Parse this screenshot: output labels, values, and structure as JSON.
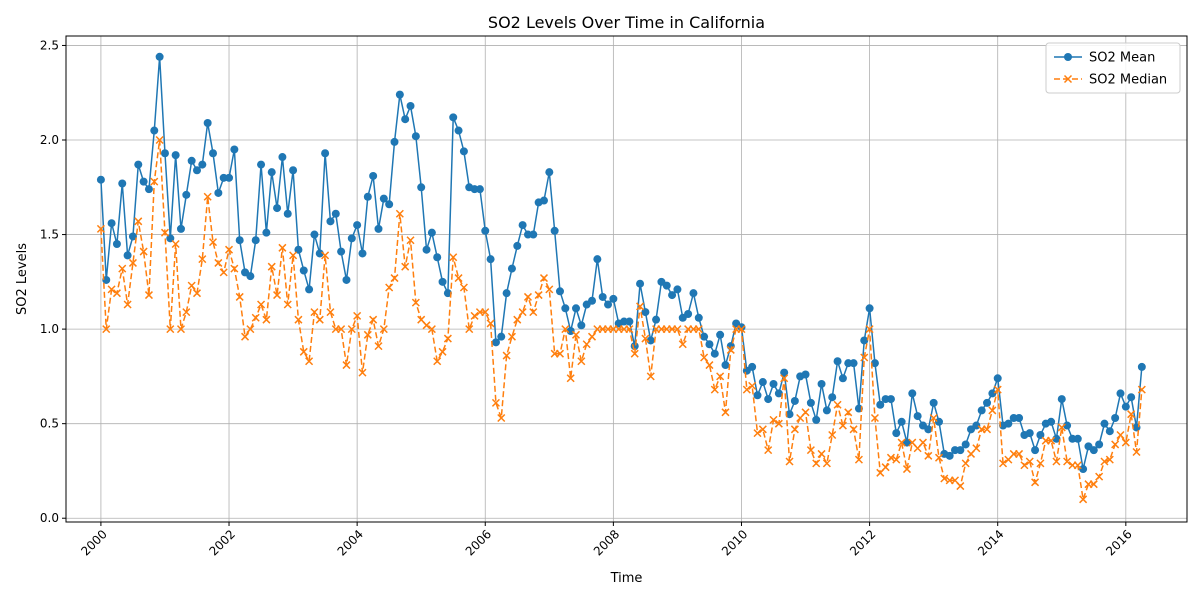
{
  "chart_data": {
    "type": "line",
    "title": "SO2 Levels Over Time in California",
    "xlabel": "Time",
    "ylabel": "SO2 Levels",
    "x_ticks": [
      "2000",
      "2002",
      "2004",
      "2006",
      "2008",
      "2010",
      "2012",
      "2014",
      "2016"
    ],
    "y_ticks": [
      "0.0",
      "0.5",
      "1.0",
      "1.5",
      "2.0",
      "2.5"
    ],
    "xlim": [
      "1999-06-15",
      "2016-12-15"
    ],
    "ylim": [
      -0.02,
      2.55
    ],
    "grid": true,
    "legend_position": "top-right",
    "start_month": "2000-01",
    "series": [
      {
        "name": "SO2 Mean",
        "color": "#1f77b4",
        "line_style": "solid",
        "marker": "circle",
        "values": [
          1.79,
          1.26,
          1.56,
          1.45,
          1.77,
          1.39,
          1.49,
          1.87,
          1.78,
          1.74,
          2.05,
          2.44,
          1.93,
          1.48,
          1.92,
          1.53,
          1.71,
          1.89,
          1.84,
          1.87,
          2.09,
          1.93,
          1.72,
          1.8,
          1.8,
          1.95,
          1.47,
          1.3,
          1.28,
          1.47,
          1.87,
          1.51,
          1.83,
          1.64,
          1.91,
          1.61,
          1.84,
          1.42,
          1.31,
          1.21,
          1.5,
          1.4,
          1.93,
          1.57,
          1.61,
          1.41,
          1.26,
          1.48,
          1.55,
          1.4,
          1.7,
          1.81,
          1.53,
          1.69,
          1.66,
          1.99,
          2.24,
          2.11,
          2.18,
          2.02,
          1.75,
          1.42,
          1.51,
          1.38,
          1.25,
          1.19,
          2.12,
          2.05,
          1.94,
          1.75,
          1.74,
          1.74,
          1.52,
          1.37,
          0.93,
          0.96,
          1.19,
          1.32,
          1.44,
          1.55,
          1.5,
          1.5,
          1.67,
          1.68,
          1.83,
          1.52,
          1.2,
          1.11,
          0.99,
          1.11,
          1.02,
          1.13,
          1.15,
          1.37,
          1.17,
          1.13,
          1.16,
          1.03,
          1.04,
          1.04,
          0.91,
          1.24,
          1.09,
          0.94,
          1.05,
          1.25,
          1.23,
          1.18,
          1.21,
          1.06,
          1.08,
          1.19,
          1.06,
          0.96,
          0.92,
          0.87,
          0.97,
          0.81,
          0.91,
          1.03,
          1.01,
          0.78,
          0.8,
          0.65,
          0.72,
          0.63,
          0.71,
          0.66,
          0.77,
          0.55,
          0.62,
          0.75,
          0.76,
          0.61,
          0.52,
          0.71,
          0.57,
          0.64,
          0.83,
          0.74,
          0.82,
          0.82,
          0.58,
          0.94,
          1.11,
          0.82,
          0.6,
          0.63,
          0.63,
          0.45,
          0.51,
          0.4,
          0.66,
          0.54,
          0.49,
          0.47,
          0.61,
          0.51,
          0.34,
          0.33,
          0.36,
          0.36,
          0.39,
          0.47,
          0.49,
          0.57,
          0.61,
          0.66,
          0.74,
          0.49,
          0.5,
          0.53,
          0.53,
          0.44,
          0.45,
          0.36,
          0.44,
          0.5,
          0.51,
          0.42,
          0.63,
          0.49,
          0.42,
          0.42,
          0.26,
          0.38,
          0.36,
          0.39,
          0.5,
          0.46,
          0.53,
          0.66,
          0.59,
          0.64,
          0.48,
          0.8
        ]
      },
      {
        "name": "SO2 Median",
        "color": "#ff7f0e",
        "line_style": "dashed",
        "marker": "x",
        "values": [
          1.53,
          1.0,
          1.21,
          1.19,
          1.32,
          1.13,
          1.35,
          1.57,
          1.41,
          1.18,
          1.78,
          2.0,
          1.51,
          1.0,
          1.45,
          1.0,
          1.09,
          1.23,
          1.19,
          1.37,
          1.7,
          1.46,
          1.35,
          1.3,
          1.42,
          1.32,
          1.17,
          0.96,
          1.0,
          1.06,
          1.13,
          1.05,
          1.33,
          1.18,
          1.43,
          1.13,
          1.39,
          1.05,
          0.88,
          0.83,
          1.09,
          1.05,
          1.39,
          1.09,
          1.0,
          1.0,
          0.81,
          1.0,
          1.07,
          0.77,
          0.97,
          1.05,
          0.91,
          1.0,
          1.22,
          1.27,
          1.61,
          1.33,
          1.47,
          1.14,
          1.05,
          1.02,
          1.0,
          0.83,
          0.88,
          0.95,
          1.38,
          1.27,
          1.22,
          1.0,
          1.07,
          1.09,
          1.09,
          1.03,
          0.61,
          0.53,
          0.86,
          0.96,
          1.05,
          1.09,
          1.17,
          1.09,
          1.18,
          1.27,
          1.21,
          0.87,
          0.87,
          1.0,
          0.74,
          0.97,
          0.83,
          0.92,
          0.96,
          1.0,
          1.0,
          1.0,
          1.0,
          1.0,
          1.0,
          1.0,
          0.87,
          1.12,
          0.95,
          0.75,
          1.0,
          1.0,
          1.0,
          1.0,
          1.0,
          0.92,
          1.0,
          1.0,
          1.0,
          0.85,
          0.81,
          0.68,
          0.75,
          0.56,
          0.89,
          1.0,
          1.0,
          0.68,
          0.7,
          0.45,
          0.47,
          0.36,
          0.52,
          0.5,
          0.74,
          0.3,
          0.47,
          0.53,
          0.56,
          0.36,
          0.29,
          0.34,
          0.29,
          0.44,
          0.6,
          0.49,
          0.56,
          0.47,
          0.31,
          0.85,
          1.0,
          0.53,
          0.24,
          0.27,
          0.32,
          0.31,
          0.4,
          0.26,
          0.4,
          0.37,
          0.4,
          0.33,
          0.53,
          0.32,
          0.21,
          0.2,
          0.2,
          0.17,
          0.29,
          0.34,
          0.37,
          0.47,
          0.47,
          0.57,
          0.68,
          0.29,
          0.31,
          0.34,
          0.34,
          0.28,
          0.3,
          0.19,
          0.29,
          0.41,
          0.41,
          0.3,
          0.48,
          0.3,
          0.28,
          0.28,
          0.1,
          0.18,
          0.18,
          0.22,
          0.3,
          0.31,
          0.39,
          0.44,
          0.4,
          0.55,
          0.35,
          0.68
        ]
      }
    ]
  }
}
